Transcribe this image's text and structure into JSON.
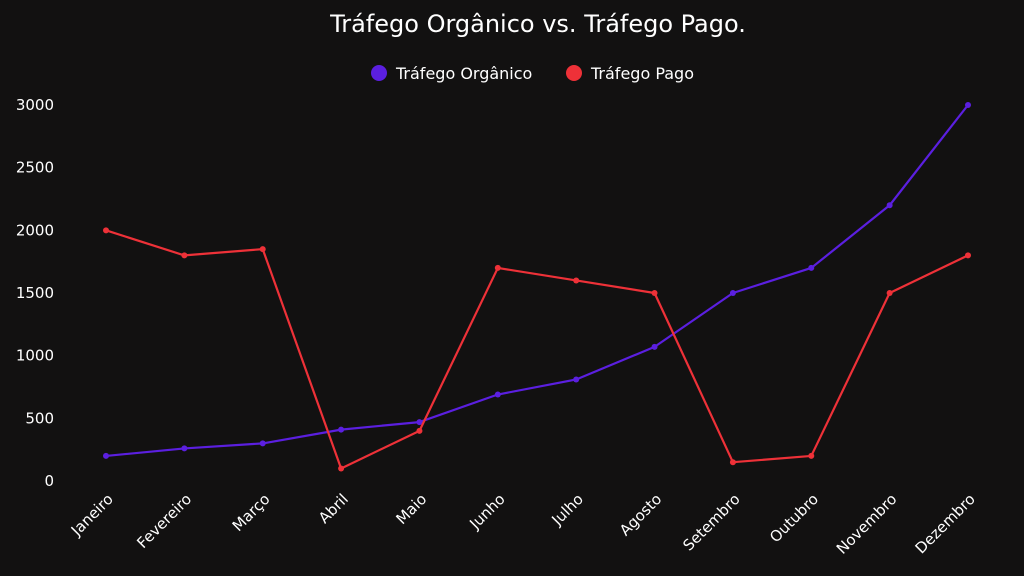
{
  "chart_data": {
    "type": "line",
    "title": "Tráfego Orgânico vs. Tráfego Pago.",
    "xlabel": "",
    "ylabel": "",
    "categories": [
      "Janeiro",
      "Fevereiro",
      "Março",
      "Abril",
      "Maio",
      "Junho",
      "Julho",
      "Agosto",
      "Setembro",
      "Outubro",
      "Novembro",
      "Dezembro"
    ],
    "series": [
      {
        "name": "Tráfego Orgânico",
        "color": "#5b1fe0",
        "values": [
          200,
          260,
          300,
          410,
          470,
          690,
          810,
          1070,
          1500,
          1700,
          2200,
          3000
        ]
      },
      {
        "name": "Tráfego Pago",
        "color": "#ee3138",
        "values": [
          2000,
          1800,
          1850,
          100,
          400,
          1700,
          1600,
          1500,
          150,
          200,
          1500,
          1800
        ]
      }
    ],
    "yticks": [
      0,
      500,
      1000,
      1500,
      2000,
      2500,
      3000
    ],
    "ylim": [
      0,
      3000
    ],
    "grid": false,
    "legend_position": "top-center",
    "background": "#121111"
  }
}
